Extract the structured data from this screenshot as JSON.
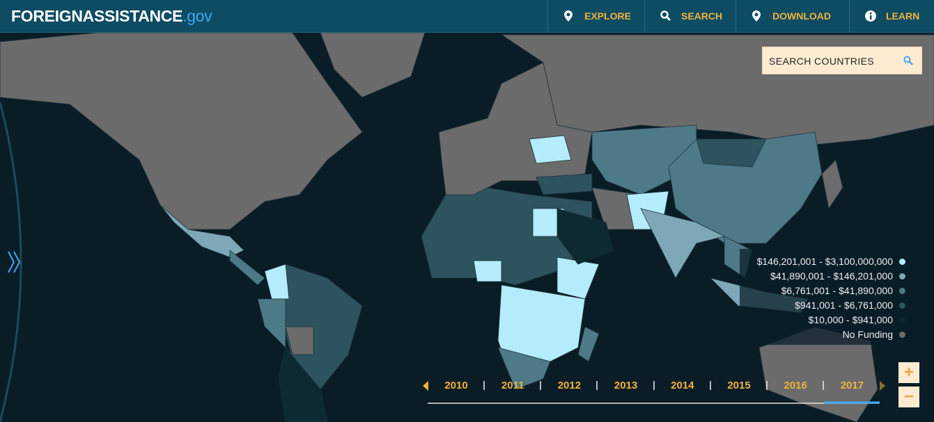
{
  "header": {
    "logo": "FOREIGNASSISTANCE",
    "logo_suffix": ".gov",
    "nav": [
      "EXPLORE",
      "SEARCH",
      "DOWNLOAD",
      "LEARN"
    ]
  },
  "search": {
    "placeholder": "SEARCH COUNTRIES"
  },
  "legend": [
    {
      "label": "$146,201,001 - $3,100,000,000",
      "color": "#b4ecfb"
    },
    {
      "label": "$41,890,001 - $146,201,000",
      "color": "#7ea8b7"
    },
    {
      "label": "$6,761,001 - $41,890,000",
      "color": "#4e7a87"
    },
    {
      "label": "$941,001 - $6,761,000",
      "color": "#2d535e"
    },
    {
      "label": "$10,000 - $941,000",
      "color": "#0d2a33"
    },
    {
      "label": "No Funding",
      "color": "#6b6b6b"
    }
  ],
  "timeline": {
    "years": [
      "2010",
      "2011",
      "2012",
      "2013",
      "2014",
      "2015",
      "2016",
      "2017"
    ]
  },
  "zoom": [
    "+",
    "−"
  ]
}
